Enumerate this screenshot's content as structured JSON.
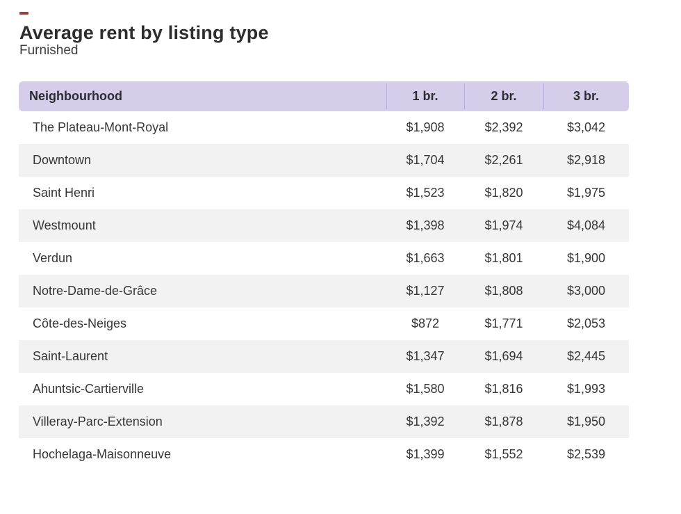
{
  "page": {
    "title": "Average rent by listing type",
    "subtitle": "Furnished"
  },
  "table": {
    "columns": [
      {
        "label": "Neighbourhood"
      },
      {
        "label": "1 br."
      },
      {
        "label": "2 br."
      },
      {
        "label": "3 br."
      }
    ],
    "rows": [
      {
        "neighbourhood": "The Plateau-Mont-Royal",
        "br1": "$1,908",
        "br2": "$2,392",
        "br3": "$3,042"
      },
      {
        "neighbourhood": "Downtown",
        "br1": "$1,704",
        "br2": "$2,261",
        "br3": "$2,918"
      },
      {
        "neighbourhood": "Saint Henri",
        "br1": "$1,523",
        "br2": "$1,820",
        "br3": "$1,975"
      },
      {
        "neighbourhood": "Westmount",
        "br1": "$1,398",
        "br2": "$1,974",
        "br3": "$4,084"
      },
      {
        "neighbourhood": "Verdun",
        "br1": "$1,663",
        "br2": "$1,801",
        "br3": "$1,900"
      },
      {
        "neighbourhood": "Notre-Dame-de-Grâce",
        "br1": "$1,127",
        "br2": "$1,808",
        "br3": "$3,000"
      },
      {
        "neighbourhood": "Côte-des-Neiges",
        "br1": "$872",
        "br2": "$1,771",
        "br3": "$2,053"
      },
      {
        "neighbourhood": "Saint-Laurent",
        "br1": "$1,347",
        "br2": "$1,694",
        "br3": "$2,445"
      },
      {
        "neighbourhood": "Ahuntsic-Cartierville",
        "br1": "$1,580",
        "br2": "$1,816",
        "br3": "$1,993"
      },
      {
        "neighbourhood": "Villeray-Parc-Extension",
        "br1": "$1,392",
        "br2": "$1,878",
        "br3": "$1,950"
      },
      {
        "neighbourhood": "Hochelaga-Maisonneuve",
        "br1": "$1,399",
        "br2": "$1,552",
        "br3": "$2,539"
      }
    ]
  },
  "colors": {
    "header_bg": "#d6cdea",
    "header_divider": "#b9abd8",
    "row_alt_bg": "#f2f2f2",
    "title_text": "#2d2d2d",
    "body_text": "#363636",
    "accent_dash": "#93423a"
  },
  "chart_data": {
    "type": "table",
    "title": "Average rent by listing type",
    "subtitle": "Furnished",
    "columns": [
      "Neighbourhood",
      "1 br.",
      "2 br.",
      "3 br."
    ],
    "rows": [
      [
        "The Plateau-Mont-Royal",
        1908,
        2392,
        3042
      ],
      [
        "Downtown",
        1704,
        2261,
        2918
      ],
      [
        "Saint Henri",
        1523,
        1820,
        1975
      ],
      [
        "Westmount",
        1398,
        1974,
        4084
      ],
      [
        "Verdun",
        1663,
        1801,
        1900
      ],
      [
        "Notre-Dame-de-Grâce",
        1127,
        1808,
        3000
      ],
      [
        "Côte-des-Neiges",
        872,
        1771,
        2053
      ],
      [
        "Saint-Laurent",
        1347,
        1694,
        2445
      ],
      [
        "Ahuntsic-Cartierville",
        1580,
        1816,
        1993
      ],
      [
        "Villeray-Parc-Extension",
        1392,
        1878,
        1950
      ],
      [
        "Hochelaga-Maisonneuve",
        1399,
        1552,
        2539
      ]
    ]
  }
}
